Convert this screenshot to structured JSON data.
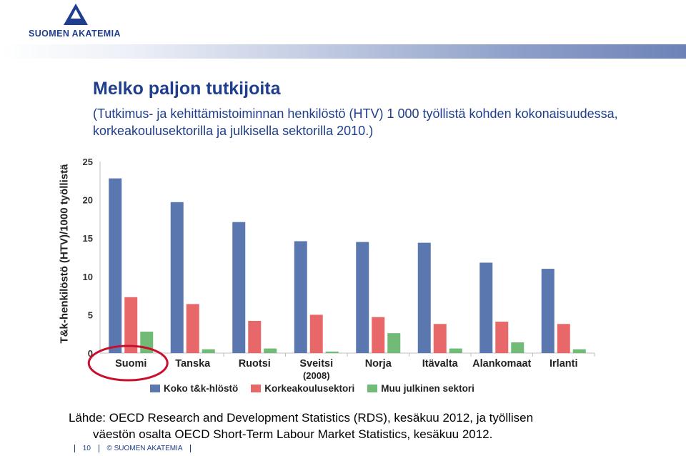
{
  "header": {
    "logo_text": "SUOMEN AKATEMIA",
    "brand_color": "#1f3e8e"
  },
  "slide": {
    "title": "Melko paljon tutkijoita",
    "subtitle": "(Tutkimus- ja kehittämistoiminnan henkilöstö (HTV) 1 000 työllistä kohden kokonaisuudessa, korkeakoulusektorilla ja julkisella sektorilla 2010.)",
    "source_line1": "Lähde: OECD Research and Development Statistics (RDS), kesäkuu 2012, ja työllisen",
    "source_line2": "väestön osalta OECD Short-Term Labour Market Statistics, kesäkuu 2012."
  },
  "footer": {
    "page_number": "10",
    "copyright": "© SUOMEN AKATEMIA"
  },
  "chart_data": {
    "type": "bar",
    "ylabel": "T&k-henkilöstö (HTV)/1000 työllistä",
    "xlabel": "",
    "ylim": [
      0,
      25
    ],
    "yticks": [
      "0",
      "5",
      "10",
      "15",
      "20",
      "25"
    ],
    "categories": [
      "Suomi",
      "Tanska",
      "Ruotsi",
      "Sveitsi",
      "Norja",
      "Itävalta",
      "Alankomaat",
      "Irlanti"
    ],
    "category_notes": [
      "",
      "",
      "",
      "(2008)",
      "",
      "",
      "",
      ""
    ],
    "highlighted_category": "Suomi",
    "grid": false,
    "legend_position": "bottom",
    "series": [
      {
        "name": "Koko t&k-hlöstö",
        "color": "#5b77b0",
        "values": [
          22.8,
          19.7,
          17.1,
          14.6,
          14.5,
          14.4,
          11.8,
          11.0
        ]
      },
      {
        "name": "Korkeakoulusektori",
        "color": "#e8686a",
        "values": [
          7.3,
          6.4,
          4.2,
          5.0,
          4.7,
          3.8,
          4.1,
          3.8
        ]
      },
      {
        "name": "Muu julkinen sektori",
        "color": "#71bb76",
        "values": [
          2.8,
          0.5,
          0.6,
          0.2,
          2.6,
          0.6,
          1.4,
          0.5
        ]
      }
    ]
  }
}
